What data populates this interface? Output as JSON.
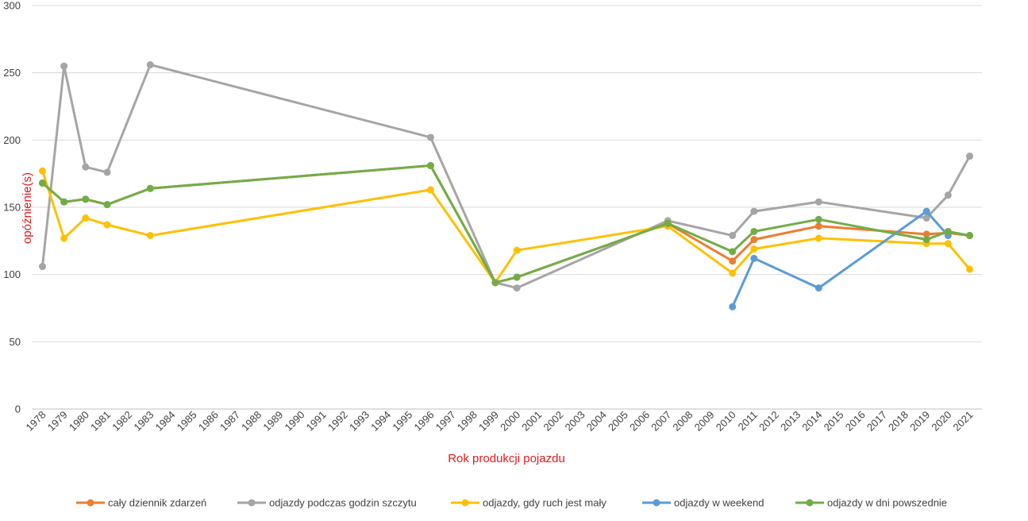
{
  "chart_data": {
    "type": "line",
    "xlabel": "Rok produkcji pojazdu",
    "ylabel": "opóźnienie(s)",
    "ylim": [
      0,
      300
    ],
    "yticks": [
      0,
      50,
      100,
      150,
      200,
      250,
      300
    ],
    "grid": true,
    "legend_position": "bottom",
    "categories": [
      "1978",
      "1979",
      "1980",
      "1981",
      "1982",
      "1983",
      "1984",
      "1985",
      "1986",
      "1987",
      "1988",
      "1989",
      "1990",
      "1991",
      "1992",
      "1993",
      "1994",
      "1995",
      "1996",
      "1997",
      "1998",
      "1999",
      "2000",
      "2001",
      "2002",
      "2003",
      "2004",
      "2005",
      "2006",
      "2007",
      "2008",
      "2009",
      "2010",
      "2011",
      "2012",
      "2013",
      "2014",
      "2015",
      "2016",
      "2017",
      "2018",
      "2019",
      "2020",
      "2021"
    ],
    "series": [
      {
        "name": "odjazdy podczas godzin szczytu",
        "color": "#a5a5a5",
        "points": [
          [
            1978,
            106
          ],
          [
            1979,
            255
          ],
          [
            1980,
            180
          ],
          [
            1981,
            176
          ],
          [
            1983,
            256
          ],
          [
            1996,
            202
          ],
          [
            1999,
            94
          ],
          [
            2000,
            90
          ],
          [
            2007,
            140
          ],
          [
            2010,
            129
          ],
          [
            2011,
            147
          ],
          [
            2014,
            154
          ],
          [
            2019,
            142
          ],
          [
            2020,
            159
          ],
          [
            2021,
            188
          ]
        ]
      },
      {
        "name": "odjazdy, gdy ruch jest mały",
        "color": "#ffc000",
        "points": [
          [
            1978,
            177
          ],
          [
            1979,
            127
          ],
          [
            1980,
            142
          ],
          [
            1981,
            137
          ],
          [
            1983,
            129
          ],
          [
            1996,
            163
          ],
          [
            1999,
            94
          ],
          [
            2000,
            118
          ],
          [
            2007,
            136
          ],
          [
            2010,
            101
          ],
          [
            2011,
            119
          ],
          [
            2014,
            127
          ],
          [
            2019,
            123
          ],
          [
            2020,
            123
          ],
          [
            2021,
            104
          ]
        ]
      },
      {
        "name": "cały dziennik zdarzeń",
        "color": "#ed7d31",
        "points": [
          [
            1978,
            168
          ],
          [
            1979,
            154
          ],
          [
            1980,
            156
          ],
          [
            1981,
            152
          ],
          [
            1983,
            164
          ],
          [
            1996,
            181
          ],
          [
            1999,
            94
          ],
          [
            2000,
            98
          ],
          [
            2007,
            138
          ],
          [
            2010,
            110
          ],
          [
            2011,
            126
          ],
          [
            2014,
            136
          ],
          [
            2019,
            130
          ],
          [
            2020,
            131
          ],
          [
            2021,
            129
          ]
        ]
      },
      {
        "name": "odjazdy w weekend",
        "color": "#5b9bd5",
        "points": [
          [
            2010,
            76
          ],
          [
            2011,
            112
          ],
          [
            2014,
            90
          ],
          [
            2019,
            147
          ],
          [
            2020,
            129
          ]
        ]
      },
      {
        "name": "odjazdy w dni powszednie",
        "color": "#70ad47",
        "points": [
          [
            1978,
            168
          ],
          [
            1979,
            154
          ],
          [
            1980,
            156
          ],
          [
            1981,
            152
          ],
          [
            1983,
            164
          ],
          [
            1996,
            181
          ],
          [
            1999,
            94
          ],
          [
            2000,
            98
          ],
          [
            2007,
            138
          ],
          [
            2010,
            117
          ],
          [
            2011,
            132
          ],
          [
            2014,
            141
          ],
          [
            2019,
            126
          ],
          [
            2020,
            132
          ],
          [
            2021,
            129
          ]
        ]
      }
    ],
    "legend": [
      {
        "name": "cały dziennik zdarzeń",
        "color": "#ed7d31"
      },
      {
        "name": "odjazdy podczas godzin szczytu",
        "color": "#a5a5a5"
      },
      {
        "name": "odjazdy, gdy ruch jest mały",
        "color": "#ffc000"
      },
      {
        "name": "odjazdy w weekend",
        "color": "#5b9bd5"
      },
      {
        "name": "odjazdy w dni powszednie",
        "color": "#70ad47"
      }
    ]
  }
}
